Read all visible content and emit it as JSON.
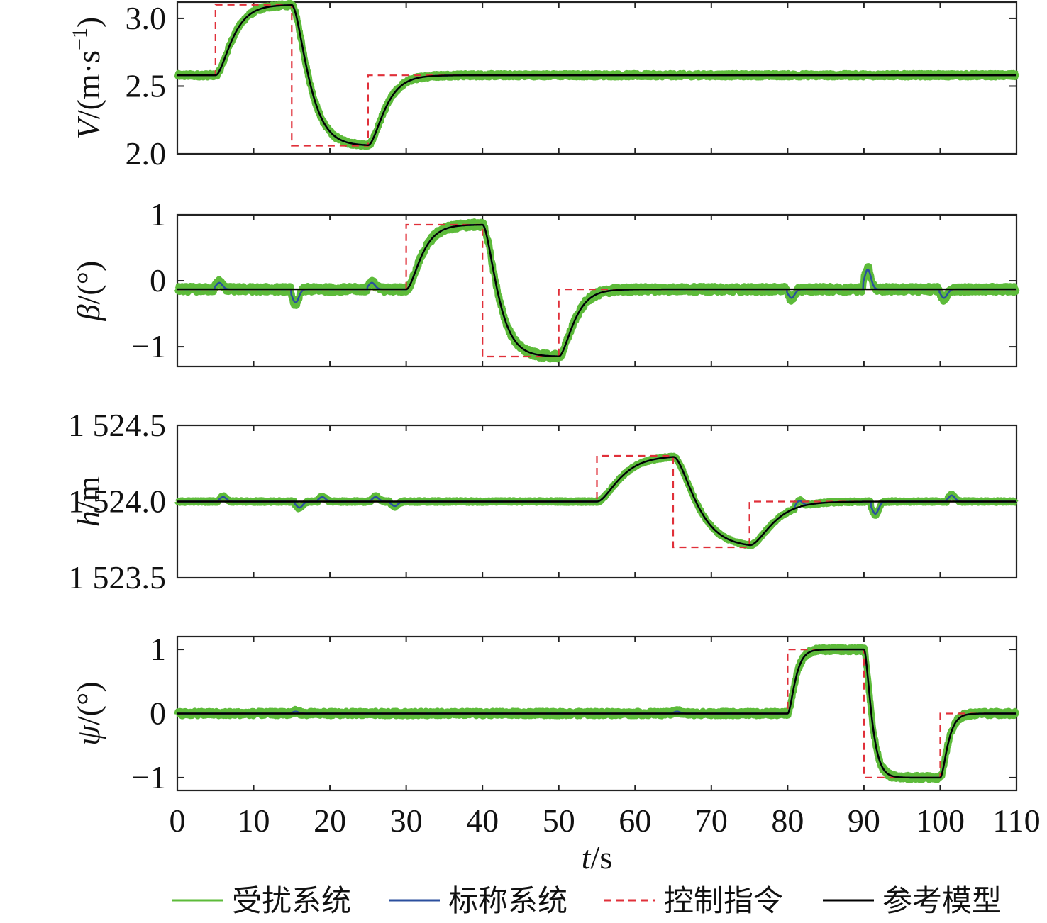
{
  "chart_data": {
    "type": "line",
    "x_axis": {
      "label_italic": "t",
      "label_rest": "/s",
      "range": [
        0,
        110
      ],
      "ticks": [
        0,
        10,
        20,
        30,
        40,
        50,
        60,
        70,
        80,
        90,
        100,
        110
      ],
      "tick_labels": [
        "0",
        "10",
        "20",
        "30",
        "40",
        "50",
        "60",
        "70",
        "80",
        "90",
        "100",
        "110"
      ]
    },
    "legend": {
      "placement": "bottom",
      "entries": [
        {
          "key": "disturbed",
          "label": "受扰系统",
          "color": "#5dbb3a",
          "style": "solid"
        },
        {
          "key": "nominal",
          "label": "标称系统",
          "color": "#2b4f9e",
          "style": "solid"
        },
        {
          "key": "command",
          "label": "控制指令",
          "color": "#e0303a",
          "style": "dashed"
        },
        {
          "key": "reference",
          "label": "参考模型",
          "color": "#000000",
          "style": "solid"
        }
      ]
    },
    "panels": [
      {
        "ylabel_italic": "V",
        "ylabel_rest": "/(m·s",
        "ylabel_sup": "−1",
        "ylabel_close": ")",
        "ylim": [
          2.0,
          3.12
        ],
        "yticks": [
          2.0,
          2.5,
          3.0
        ],
        "ytick_labels": [
          "2.0",
          "2.5",
          "3.0"
        ],
        "base": 2.58,
        "command_steps": [
          [
            0,
            2.58
          ],
          [
            5,
            3.1
          ],
          [
            15,
            2.06
          ],
          [
            25,
            2.58
          ]
        ],
        "tau": 1.3,
        "overshoot": 0.02,
        "noise": 0.015,
        "blips": []
      },
      {
        "ylabel_italic": "β",
        "ylabel_rest": "/(°)",
        "ylim": [
          -1.3,
          1.0
        ],
        "yticks": [
          -1,
          0,
          1
        ],
        "ytick_labels": [
          "−1",
          "0",
          "1"
        ],
        "base": -0.13,
        "command_steps": [
          [
            0,
            -0.13
          ],
          [
            30,
            0.85
          ],
          [
            40,
            -1.15
          ],
          [
            50,
            -0.13
          ]
        ],
        "tau": 1.2,
        "overshoot": 0.06,
        "noise": 0.05,
        "blips": [
          [
            5.5,
            0.1
          ],
          [
            15.5,
            -0.2
          ],
          [
            25.5,
            0.1
          ],
          [
            80.5,
            -0.13
          ],
          [
            90.5,
            0.3
          ],
          [
            100.5,
            -0.13
          ]
        ]
      },
      {
        "ylabel_italic": "h",
        "ylabel_rest": "/m",
        "ylim": [
          1523.5,
          1524.5
        ],
        "yticks": [
          1523.5,
          1524.0,
          1524.5
        ],
        "ytick_labels": [
          "1 523.5",
          "1 524.0",
          "1 524.5"
        ],
        "base": 1524.0,
        "command_steps": [
          [
            0,
            1524.0
          ],
          [
            55,
            1524.3
          ],
          [
            65,
            1523.7
          ],
          [
            75,
            1524.0
          ]
        ],
        "tau": 1.8,
        "overshoot": 0.02,
        "noise": 0.008,
        "blips": [
          [
            6,
            0.03
          ],
          [
            16,
            -0.04
          ],
          [
            19,
            0.03
          ],
          [
            26,
            0.03
          ],
          [
            28.5,
            -0.03
          ],
          [
            81.5,
            0.04
          ],
          [
            91.5,
            -0.08
          ],
          [
            101.5,
            0.04
          ]
        ]
      },
      {
        "ylabel_italic": "ψ",
        "ylabel_rest": "/(°)",
        "ylim": [
          -1.2,
          1.2
        ],
        "yticks": [
          -1,
          0,
          1
        ],
        "ytick_labels": [
          "−1",
          "0",
          "1"
        ],
        "base": 0.0,
        "command_steps": [
          [
            0,
            0.0
          ],
          [
            80,
            1.0
          ],
          [
            90,
            -1.0
          ],
          [
            100,
            0.0
          ]
        ],
        "tau": 0.6,
        "overshoot": 0.06,
        "noise": 0.04,
        "blips": [
          [
            15.5,
            0.03
          ],
          [
            65.5,
            0.03
          ]
        ]
      }
    ]
  }
}
